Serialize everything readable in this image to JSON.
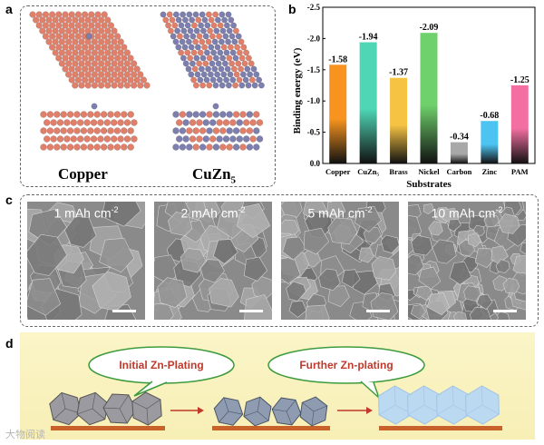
{
  "panels": {
    "a": {
      "letter": "a",
      "labels": {
        "copper": "Copper",
        "cuzn_base": "CuZn",
        "cuzn_sub": "5"
      }
    },
    "b": {
      "letter": "b",
      "ylabel": "Binding energy (eV)",
      "xlabel": "Substrates"
    },
    "c": {
      "letter": "c",
      "images": [
        {
          "label_num": "1 mAh cm",
          "sup": "-2"
        },
        {
          "label_num": "2 mAh cm",
          "sup": "-2"
        },
        {
          "label_num": "5 mAh cm",
          "sup": "-2"
        },
        {
          "label_num": "10 mAh cm",
          "sup": "-2"
        }
      ]
    },
    "d": {
      "letter": "d",
      "bubble1": "Initial Zn-Plating",
      "bubble2": "Further Zn-plating"
    }
  },
  "watermark": "大物阅读",
  "chart_data": {
    "type": "bar",
    "categories": [
      "Copper",
      "CuZn₅",
      "Brass",
      "Nickel",
      "Carbon",
      "Zinc",
      "PAM"
    ],
    "values": [
      -1.58,
      -1.94,
      -1.37,
      -2.09,
      -0.34,
      -0.68,
      -1.25
    ],
    "value_labels": [
      "-1.58",
      "-1.94",
      "-1.37",
      "-2.09",
      "-0.34",
      "-0.68",
      "-1.25"
    ],
    "xlabel": "Substrates",
    "ylabel": "Binding energy (eV)",
    "ylim": [
      0,
      -2.5
    ],
    "yticks": [
      "0.0",
      "-0.5",
      "-1.0",
      "-1.5",
      "-2.0",
      "-2.5"
    ],
    "colors": [
      "#f7931e",
      "#4ed6b5",
      "#f6c343",
      "#6fd16b",
      "#a8a8a8",
      "#4cc3f0",
      "#f36fa1"
    ]
  }
}
